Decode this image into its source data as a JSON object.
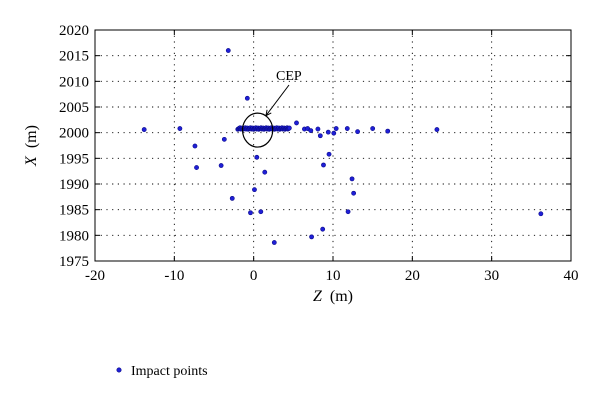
{
  "chart_data": {
    "type": "scatter",
    "xlabel": {
      "var": "Z",
      "unit": "(m)"
    },
    "ylabel": {
      "var": "X",
      "unit": "(m)"
    },
    "xlim": [
      -20,
      40
    ],
    "ylim": [
      1975,
      2020
    ],
    "xticks": [
      -20,
      -10,
      0,
      10,
      20,
      30,
      40
    ],
    "yticks": [
      1975,
      1980,
      1985,
      1990,
      1995,
      2000,
      2005,
      2010,
      2015,
      2020
    ],
    "grid": "dotted",
    "legend": {
      "position": "bottom-left",
      "label": "Impact points"
    },
    "annotation": {
      "text": "CEP",
      "center": [
        0.5,
        2000.5
      ],
      "radius_z": 1.9,
      "radius_x": 3.3
    },
    "marker_color": "#1f1fd6",
    "series": [
      {
        "name": "Impact points",
        "points": [
          [
            -13.8,
            2000.6
          ],
          [
            -9.3,
            2000.8
          ],
          [
            -7.4,
            1997.4
          ],
          [
            -7.2,
            1993.2
          ],
          [
            -4.1,
            1993.6
          ],
          [
            -3.7,
            1998.7
          ],
          [
            -3.2,
            2016.0
          ],
          [
            -2.7,
            1987.2
          ],
          [
            -0.8,
            2006.7
          ],
          [
            -0.4,
            1984.4
          ],
          [
            0.1,
            1988.9
          ],
          [
            0.4,
            1995.2
          ],
          [
            0.9,
            1984.6
          ],
          [
            1.4,
            1992.3
          ],
          [
            2.6,
            1978.6
          ],
          [
            5.4,
            2001.9
          ],
          [
            6.4,
            2000.7
          ],
          [
            6.8,
            2000.8
          ],
          [
            7.2,
            2000.4
          ],
          [
            7.3,
            1979.7
          ],
          [
            8.1,
            2000.7
          ],
          [
            8.4,
            1999.4
          ],
          [
            8.7,
            1981.2
          ],
          [
            8.8,
            1993.7
          ],
          [
            9.4,
            2000.1
          ],
          [
            9.5,
            1995.8
          ],
          [
            10.1,
            1999.9
          ],
          [
            10.4,
            2000.8
          ],
          [
            11.8,
            2000.8
          ],
          [
            11.9,
            1984.6
          ],
          [
            12.4,
            1991.0
          ],
          [
            12.6,
            1988.2
          ],
          [
            13.1,
            2000.2
          ],
          [
            15.0,
            2000.8
          ],
          [
            16.9,
            2000.3
          ],
          [
            23.1,
            2000.6
          ],
          [
            36.2,
            1984.2
          ]
        ]
      }
    ],
    "dense_band": {
      "z_from": -2.0,
      "z_to": 4.5,
      "x": 2000.8,
      "count": 70
    }
  }
}
